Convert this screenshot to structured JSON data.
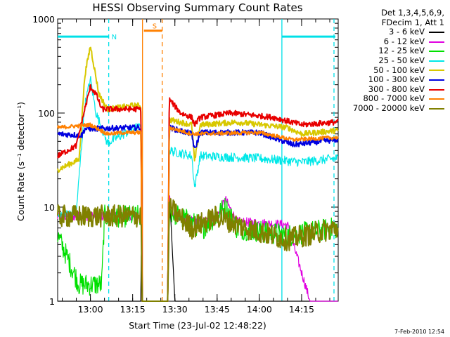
{
  "chart_data": {
    "type": "line",
    "title": "HESSI Observing Summary Count Rates",
    "xlabel": "Start Time (23-Jul-02 12:48:22)",
    "ylabel": "Count Rate (s⁻¹ detector⁻¹)",
    "yscale": "log",
    "ylim": [
      1,
      1000
    ],
    "xlim": [
      "12:48:22",
      "14:28:00"
    ],
    "x_ticks": [
      "13:00",
      "13:15",
      "13:30",
      "13:45",
      "14:00",
      "14:15"
    ],
    "y_ticks": [
      "1",
      "10",
      "100",
      "1000"
    ],
    "grid": false,
    "legend_position": "outside-right",
    "legend_header": [
      "Det 1,3,4,5,6,9,",
      "FDecim 1, Att 1"
    ],
    "footer_date": "7-Feb-2010 12:54",
    "flags": [
      {
        "label": "N",
        "color": "#00e0e8",
        "y": 650,
        "segments": [
          [
            "12:48:22",
            "13:06:30"
          ],
          [
            "14:08:00",
            "14:27:00"
          ]
        ]
      },
      {
        "label": "S",
        "color": "#ff8000",
        "y": 750,
        "segments": [
          [
            "13:19:00",
            "13:25:30"
          ]
        ]
      }
    ],
    "markers": [
      {
        "time": "13:06:30",
        "color": "#00e0e8",
        "style": "dashed"
      },
      {
        "time": "14:08:00",
        "color": "#00e0e8",
        "style": "solid"
      },
      {
        "time": "14:26:30",
        "color": "#00e0e8",
        "style": "dashed"
      },
      {
        "time": "13:18:30",
        "color": "#ff8000",
        "style": "solid"
      },
      {
        "time": "13:25:30",
        "color": "#ff8000",
        "style": "dashed"
      }
    ],
    "series": [
      {
        "name": "3 - 6 keV",
        "color": "#000000",
        "jitter": 0.0,
        "points": [
          [
            "12:48:22",
            1
          ],
          [
            "13:18:00",
            1
          ],
          [
            "13:18:10",
            15
          ],
          [
            "13:18:20",
            1
          ],
          [
            "13:27:30",
            1
          ],
          [
            "13:28:00",
            16
          ],
          [
            "13:30:00",
            1
          ],
          [
            "14:27:00",
            1
          ]
        ]
      },
      {
        "name": "6 - 12 keV",
        "color": "#e000e0",
        "jitter": 0.05,
        "points": [
          [
            "12:48:22",
            8
          ],
          [
            "13:00:00",
            8
          ],
          [
            "13:15:00",
            8
          ],
          [
            "13:18:00",
            8
          ],
          [
            "13:18:20",
            1
          ],
          [
            "13:27:30",
            1
          ],
          [
            "13:28:00",
            13
          ],
          [
            "13:30:00",
            7.5
          ],
          [
            "13:44:00",
            7
          ],
          [
            "13:48:00",
            12
          ],
          [
            "13:52:00",
            7
          ],
          [
            "14:10:00",
            6.5
          ],
          [
            "14:18:00",
            1
          ],
          [
            "14:27:00",
            1
          ]
        ]
      },
      {
        "name": "12 - 25 keV",
        "color": "#00e000",
        "jitter": 0.12,
        "points": [
          [
            "12:48:22",
            5
          ],
          [
            "12:56:00",
            1.5
          ],
          [
            "13:04:00",
            1.5
          ],
          [
            "13:05:00",
            8
          ],
          [
            "13:18:00",
            8
          ],
          [
            "13:18:20",
            1
          ],
          [
            "13:27:30",
            1
          ],
          [
            "13:28:00",
            9
          ],
          [
            "13:40:00",
            6
          ],
          [
            "13:48:00",
            10
          ],
          [
            "13:52:00",
            6
          ],
          [
            "14:10:00",
            5
          ],
          [
            "14:27:00",
            6
          ]
        ]
      },
      {
        "name": "25 - 50 keV",
        "color": "#00e8e8",
        "jitter": 0.05,
        "points": [
          [
            "12:48:22",
            8
          ],
          [
            "12:55:00",
            9
          ],
          [
            "12:58:00",
            120
          ],
          [
            "13:00:00",
            230
          ],
          [
            "13:02:00",
            100
          ],
          [
            "13:06:00",
            48
          ],
          [
            "13:12:00",
            60
          ],
          [
            "13:16:00",
            70
          ],
          [
            "13:18:00",
            70
          ],
          [
            "13:18:20",
            1
          ],
          [
            "13:27:30",
            1
          ],
          [
            "13:28:00",
            40
          ],
          [
            "13:36:00",
            35
          ],
          [
            "13:37:00",
            16
          ],
          [
            "13:39:00",
            35
          ],
          [
            "14:00:00",
            33
          ],
          [
            "14:15:00",
            30
          ],
          [
            "14:27:00",
            33
          ]
        ]
      },
      {
        "name": "50 - 100 keV",
        "color": "#d8c800",
        "jitter": 0.03,
        "points": [
          [
            "12:48:22",
            25
          ],
          [
            "12:56:00",
            32
          ],
          [
            "12:58:00",
            250
          ],
          [
            "13:00:00",
            520
          ],
          [
            "13:03:00",
            160
          ],
          [
            "13:06:00",
            110
          ],
          [
            "13:15:00",
            120
          ],
          [
            "13:18:00",
            120
          ],
          [
            "13:18:20",
            1
          ],
          [
            "13:27:30",
            1
          ],
          [
            "13:28:00",
            85
          ],
          [
            "13:36:00",
            75
          ],
          [
            "13:37:00",
            30
          ],
          [
            "13:39:00",
            75
          ],
          [
            "13:52:00",
            80
          ],
          [
            "14:10:00",
            70
          ],
          [
            "14:15:00",
            60
          ],
          [
            "14:27:00",
            65
          ]
        ]
      },
      {
        "name": "100 - 300 keV",
        "color": "#0000e0",
        "jitter": 0.03,
        "points": [
          [
            "12:48:22",
            60
          ],
          [
            "12:57:00",
            58
          ],
          [
            "12:58:00",
            68
          ],
          [
            "13:18:00",
            70
          ],
          [
            "13:18:20",
            1
          ],
          [
            "13:27:30",
            1
          ],
          [
            "13:28:00",
            70
          ],
          [
            "13:36:00",
            60
          ],
          [
            "13:37:00",
            40
          ],
          [
            "13:39:00",
            62
          ],
          [
            "14:00:00",
            62
          ],
          [
            "14:12:00",
            46
          ],
          [
            "14:27:00",
            52
          ]
        ]
      },
      {
        "name": "300 - 800 keV",
        "color": "#e80000",
        "jitter": 0.03,
        "points": [
          [
            "12:48:22",
            35
          ],
          [
            "12:55:00",
            45
          ],
          [
            "12:58:00",
            110
          ],
          [
            "13:00:00",
            190
          ],
          [
            "13:02:00",
            160
          ],
          [
            "13:04:00",
            110
          ],
          [
            "13:12:00",
            110
          ],
          [
            "13:18:00",
            110
          ],
          [
            "13:18:20",
            1
          ],
          [
            "13:27:30",
            1
          ],
          [
            "13:28:00",
            140
          ],
          [
            "13:32:00",
            100
          ],
          [
            "13:36:00",
            90
          ],
          [
            "13:37:00",
            75
          ],
          [
            "13:39:00",
            90
          ],
          [
            "13:50:00",
            100
          ],
          [
            "14:05:00",
            90
          ],
          [
            "14:15:00",
            75
          ],
          [
            "14:27:00",
            80
          ]
        ]
      },
      {
        "name": "800 - 7000 keV",
        "color": "#ff8000",
        "jitter": 0.02,
        "points": [
          [
            "12:48:22",
            70
          ],
          [
            "13:00:00",
            75
          ],
          [
            "13:06:00",
            60
          ],
          [
            "13:12:00",
            62
          ],
          [
            "13:18:00",
            62
          ],
          [
            "13:18:20",
            1
          ],
          [
            "13:27:30",
            1
          ],
          [
            "13:28:00",
            70
          ],
          [
            "13:36:00",
            60
          ],
          [
            "14:00:00",
            62
          ],
          [
            "14:12:00",
            52
          ],
          [
            "14:27:00",
            55
          ]
        ]
      },
      {
        "name": "7000 - 20000 keV",
        "color": "#808000",
        "jitter": 0.12,
        "points": [
          [
            "12:48:22",
            8
          ],
          [
            "13:00:00",
            8
          ],
          [
            "13:15:00",
            8
          ],
          [
            "13:18:00",
            8
          ],
          [
            "13:18:20",
            1
          ],
          [
            "13:27:30",
            1
          ],
          [
            "13:28:00",
            10
          ],
          [
            "13:36:00",
            6
          ],
          [
            "13:45:00",
            8
          ],
          [
            "13:55:00",
            6
          ],
          [
            "14:10:00",
            4.5
          ],
          [
            "14:27:00",
            6
          ]
        ]
      }
    ]
  }
}
